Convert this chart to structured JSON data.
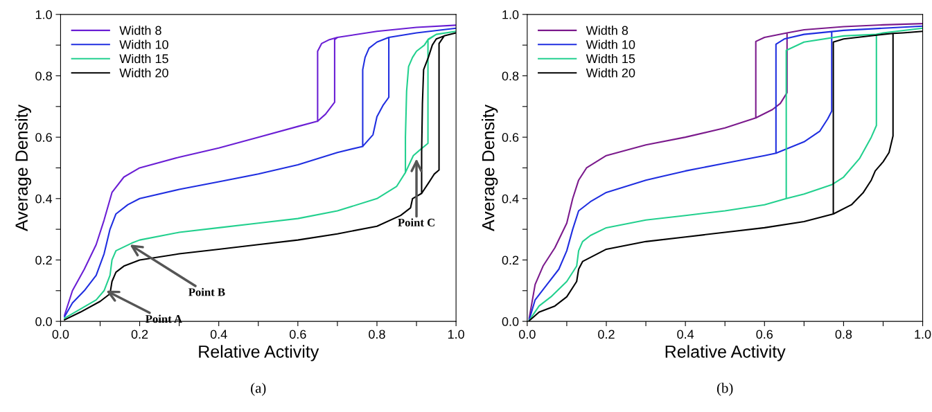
{
  "chart_data": [
    {
      "type": "line",
      "xlabel": "Relative Activity",
      "ylabel": "Average Density",
      "xlim": [
        0,
        1
      ],
      "ylim": [
        0,
        1
      ],
      "xticks": [
        {
          "value": 0,
          "label": "0.0"
        },
        {
          "value": 0.1,
          "label": null
        },
        {
          "value": 0.2,
          "label": "0.2"
        },
        {
          "value": 0.3,
          "label": null
        },
        {
          "value": 0.4,
          "label": "0.4"
        },
        {
          "value": 0.5,
          "label": null
        },
        {
          "value": 0.6,
          "label": "0.6"
        },
        {
          "value": 0.7,
          "label": null
        },
        {
          "value": 0.8,
          "label": "0.8"
        },
        {
          "value": 0.9,
          "label": null
        },
        {
          "value": 1.0,
          "label": "1.0"
        }
      ],
      "yticks": [
        {
          "value": 0,
          "label": "0.0"
        },
        {
          "value": 0.1,
          "label": null
        },
        {
          "value": 0.2,
          "label": "0.2"
        },
        {
          "value": 0.3,
          "label": null
        },
        {
          "value": 0.4,
          "label": "0.4"
        },
        {
          "value": 0.5,
          "label": null
        },
        {
          "value": 0.6,
          "label": "0.6"
        },
        {
          "value": 0.7,
          "label": null
        },
        {
          "value": 0.8,
          "label": "0.8"
        },
        {
          "value": 0.9,
          "label": null
        },
        {
          "value": 1.0,
          "label": "1.0"
        }
      ],
      "legend": "top left",
      "grid": false,
      "marker": "none",
      "line_style": "solid",
      "annotations": [
        {
          "text": "Point A",
          "x": 0.115,
          "y": 0.1
        },
        {
          "text": "Point B",
          "x": 0.175,
          "y": 0.25
        },
        {
          "text": "Point C",
          "x": 0.9,
          "y": 0.53
        },
        "(a)"
      ],
      "series": [
        {
          "name": "Width 8",
          "color": "#6a1ed4",
          "x": [
            0.01,
            0.03,
            0.06,
            0.09,
            0.11,
            0.13,
            0.16,
            0.2,
            0.3,
            0.4,
            0.5,
            0.6,
            0.65,
            0.67,
            0.693,
            0.693,
            0.7,
            0.8,
            0.9,
            1.0,
            0.9,
            0.8,
            0.7,
            0.68,
            0.66,
            0.65,
            0.65
          ],
          "values": [
            0.02,
            0.1,
            0.17,
            0.25,
            0.33,
            0.42,
            0.47,
            0.5,
            0.535,
            0.565,
            0.6,
            0.635,
            0.652,
            0.675,
            0.714,
            0.918,
            0.925,
            0.945,
            0.958,
            0.965,
            0.958,
            0.945,
            0.925,
            0.918,
            0.905,
            0.88,
            0.652
          ]
        },
        {
          "name": "Width 10",
          "color": "#1f2ee0",
          "x": [
            0.01,
            0.03,
            0.06,
            0.09,
            0.11,
            0.125,
            0.14,
            0.17,
            0.2,
            0.3,
            0.4,
            0.5,
            0.6,
            0.7,
            0.764,
            0.79,
            0.8,
            0.816,
            0.83,
            0.83,
            0.9,
            1.0,
            0.9,
            0.83,
            0.8,
            0.78,
            0.77,
            0.764,
            0.764
          ],
          "values": [
            0.015,
            0.06,
            0.1,
            0.15,
            0.22,
            0.3,
            0.35,
            0.38,
            0.4,
            0.43,
            0.455,
            0.48,
            0.51,
            0.55,
            0.57,
            0.608,
            0.667,
            0.705,
            0.73,
            0.925,
            0.94,
            0.955,
            0.94,
            0.925,
            0.91,
            0.89,
            0.86,
            0.82,
            0.57
          ]
        },
        {
          "name": "Width 15",
          "color": "#22d08e",
          "x": [
            0.01,
            0.05,
            0.09,
            0.11,
            0.125,
            0.13,
            0.14,
            0.18,
            0.2,
            0.3,
            0.4,
            0.5,
            0.6,
            0.7,
            0.8,
            0.85,
            0.872,
            0.892,
            0.91,
            0.929,
            0.929,
            0.95,
            1.0,
            0.95,
            0.93,
            0.92,
            0.9,
            0.89,
            0.88,
            0.875,
            0.872,
            0.872
          ],
          "values": [
            0.01,
            0.04,
            0.07,
            0.1,
            0.15,
            0.2,
            0.23,
            0.255,
            0.265,
            0.29,
            0.305,
            0.32,
            0.335,
            0.36,
            0.4,
            0.44,
            0.485,
            0.54,
            0.56,
            0.58,
            0.917,
            0.935,
            0.945,
            0.935,
            0.92,
            0.9,
            0.88,
            0.86,
            0.83,
            0.75,
            0.6,
            0.485
          ]
        },
        {
          "name": "Width 20",
          "color": "#000000",
          "x": [
            0.01,
            0.05,
            0.1,
            0.125,
            0.13,
            0.14,
            0.16,
            0.2,
            0.3,
            0.4,
            0.5,
            0.6,
            0.7,
            0.8,
            0.86,
            0.885,
            0.89,
            0.913,
            0.93,
            0.945,
            0.957,
            0.957,
            0.97,
            1.0,
            0.97,
            0.95,
            0.94,
            0.93,
            0.918,
            0.915,
            0.913,
            0.913
          ],
          "values": [
            0.005,
            0.03,
            0.065,
            0.09,
            0.13,
            0.16,
            0.18,
            0.2,
            0.22,
            0.235,
            0.25,
            0.265,
            0.285,
            0.31,
            0.345,
            0.37,
            0.4,
            0.417,
            0.45,
            0.48,
            0.493,
            0.905,
            0.93,
            0.94,
            0.93,
            0.92,
            0.9,
            0.86,
            0.82,
            0.71,
            0.55,
            0.417
          ]
        }
      ]
    },
    {
      "type": "line",
      "xlabel": "Relative Activity",
      "ylabel": "Average Density",
      "xlim": [
        0,
        1
      ],
      "ylim": [
        0,
        1
      ],
      "xticks": [
        {
          "value": 0,
          "label": "0.0"
        },
        {
          "value": 0.1,
          "label": null
        },
        {
          "value": 0.2,
          "label": "0.2"
        },
        {
          "value": 0.3,
          "label": null
        },
        {
          "value": 0.4,
          "label": "0.4"
        },
        {
          "value": 0.5,
          "label": null
        },
        {
          "value": 0.6,
          "label": "0.6"
        },
        {
          "value": 0.7,
          "label": null
        },
        {
          "value": 0.8,
          "label": "0.8"
        },
        {
          "value": 0.9,
          "label": null
        },
        {
          "value": 1.0,
          "label": "1.0"
        }
      ],
      "yticks": [
        {
          "value": 0,
          "label": "0.0"
        },
        {
          "value": 0.1,
          "label": null
        },
        {
          "value": 0.2,
          "label": "0.2"
        },
        {
          "value": 0.3,
          "label": null
        },
        {
          "value": 0.4,
          "label": "0.4"
        },
        {
          "value": 0.5,
          "label": null
        },
        {
          "value": 0.6,
          "label": "0.6"
        },
        {
          "value": 0.7,
          "label": null
        },
        {
          "value": 0.8,
          "label": "0.8"
        },
        {
          "value": 0.9,
          "label": null
        },
        {
          "value": 1.0,
          "label": "1.0"
        }
      ],
      "legend": "top left",
      "grid": false,
      "marker": "none",
      "line_style": "solid",
      "annotations": [
        "(b)"
      ],
      "series": [
        {
          "name": "Width 8",
          "color": "#7b1a8c",
          "x": [
            0.005,
            0.02,
            0.04,
            0.07,
            0.1,
            0.115,
            0.13,
            0.15,
            0.2,
            0.3,
            0.4,
            0.5,
            0.578,
            0.62,
            0.64,
            0.657,
            0.657,
            0.7,
            0.8,
            0.9,
            1.0,
            0.9,
            0.8,
            0.7,
            0.657,
            0.6,
            0.578,
            0.578
          ],
          "values": [
            0.01,
            0.12,
            0.18,
            0.24,
            0.32,
            0.4,
            0.46,
            0.5,
            0.54,
            0.575,
            0.6,
            0.63,
            0.663,
            0.69,
            0.71,
            0.745,
            0.94,
            0.95,
            0.96,
            0.966,
            0.97,
            0.966,
            0.96,
            0.95,
            0.94,
            0.925,
            0.912,
            0.663
          ]
        },
        {
          "name": "Width 10",
          "color": "#1f2ee0",
          "x": [
            0.005,
            0.02,
            0.05,
            0.08,
            0.1,
            0.115,
            0.13,
            0.16,
            0.2,
            0.3,
            0.4,
            0.5,
            0.6,
            0.629,
            0.7,
            0.74,
            0.76,
            0.77,
            0.77,
            0.8,
            0.9,
            1.0,
            0.9,
            0.8,
            0.77,
            0.7,
            0.65,
            0.629,
            0.629
          ],
          "values": [
            0.005,
            0.07,
            0.12,
            0.17,
            0.23,
            0.3,
            0.36,
            0.39,
            0.42,
            0.46,
            0.49,
            0.515,
            0.54,
            0.548,
            0.585,
            0.62,
            0.66,
            0.685,
            0.944,
            0.948,
            0.955,
            0.962,
            0.955,
            0.948,
            0.944,
            0.935,
            0.92,
            0.903,
            0.548
          ]
        },
        {
          "name": "Width 15",
          "color": "#22d08e",
          "x": [
            0.005,
            0.03,
            0.06,
            0.1,
            0.125,
            0.13,
            0.14,
            0.16,
            0.2,
            0.3,
            0.4,
            0.5,
            0.6,
            0.655,
            0.7,
            0.77,
            0.8,
            0.84,
            0.87,
            0.883,
            0.883,
            0.9,
            1.0,
            0.9,
            0.883,
            0.8,
            0.7,
            0.655,
            0.655
          ],
          "values": [
            0.003,
            0.05,
            0.08,
            0.13,
            0.18,
            0.23,
            0.26,
            0.28,
            0.305,
            0.33,
            0.345,
            0.36,
            0.38,
            0.4,
            0.415,
            0.445,
            0.47,
            0.53,
            0.6,
            0.638,
            0.935,
            0.94,
            0.955,
            0.94,
            0.935,
            0.93,
            0.91,
            0.883,
            0.4
          ]
        },
        {
          "name": "Width 20",
          "color": "#000000",
          "x": [
            0.005,
            0.03,
            0.07,
            0.1,
            0.125,
            0.13,
            0.14,
            0.2,
            0.3,
            0.4,
            0.5,
            0.6,
            0.7,
            0.774,
            0.82,
            0.85,
            0.87,
            0.88,
            0.9,
            0.915,
            0.925,
            0.925,
            0.95,
            1.0,
            0.95,
            0.925,
            0.9,
            0.8,
            0.774,
            0.774
          ],
          "values": [
            0.002,
            0.03,
            0.05,
            0.08,
            0.13,
            0.17,
            0.195,
            0.235,
            0.26,
            0.275,
            0.29,
            0.305,
            0.325,
            0.35,
            0.38,
            0.42,
            0.46,
            0.49,
            0.52,
            0.55,
            0.604,
            0.938,
            0.94,
            0.945,
            0.94,
            0.938,
            0.935,
            0.92,
            0.91,
            0.35
          ]
        }
      ]
    }
  ]
}
